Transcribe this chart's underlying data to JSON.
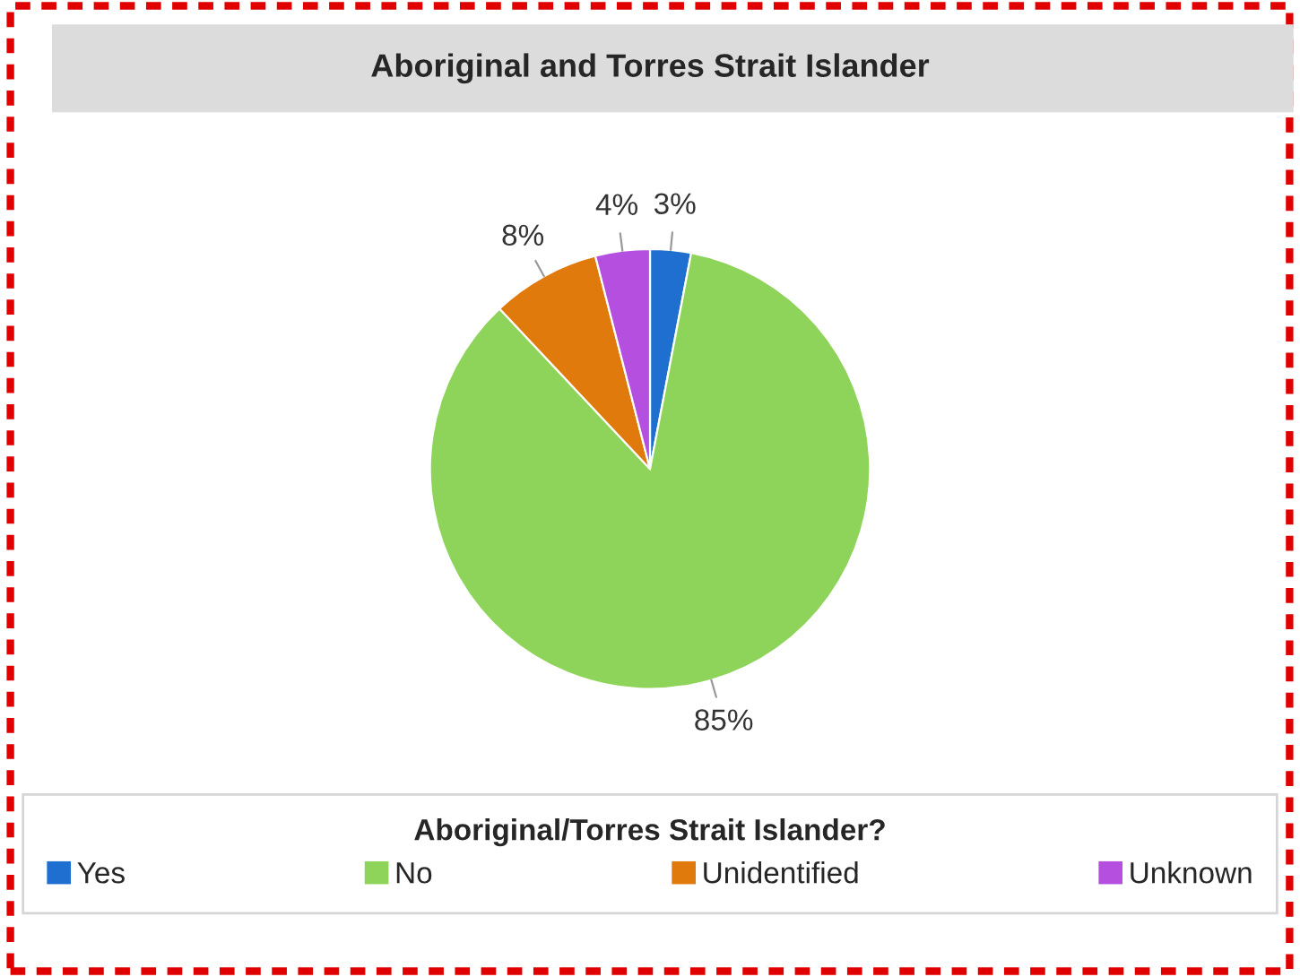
{
  "chart_data": {
    "type": "pie",
    "title": "Aboriginal and Torres Strait Islander",
    "legend_title": "Aboriginal/Torres Strait Islander?",
    "categories": [
      "Yes",
      "No",
      "Unidentified",
      "Unknown"
    ],
    "values": [
      3,
      85,
      8,
      4
    ],
    "colors": [
      "#1f6fd1",
      "#8fd45a",
      "#e07a0c",
      "#b44fe0"
    ],
    "value_labels": [
      "3%",
      "85%",
      "8%",
      "4%"
    ],
    "legend": "bottom"
  }
}
